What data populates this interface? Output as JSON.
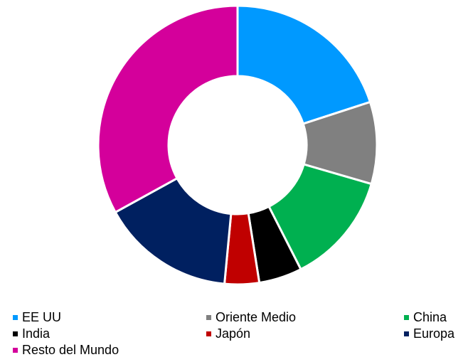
{
  "chart_data": {
    "type": "pie",
    "categories": [
      "EE UU",
      "Oriente Medio",
      "China",
      "India",
      "Japón",
      "Europa",
      "Resto del Mundo"
    ],
    "values": [
      20,
      9.5,
      13,
      5,
      4,
      15.5,
      33
    ],
    "colors": [
      "#0099ff",
      "#808080",
      "#00b050",
      "#000000",
      "#c00000",
      "#002060",
      "#d4009b"
    ],
    "donut": true
  }
}
